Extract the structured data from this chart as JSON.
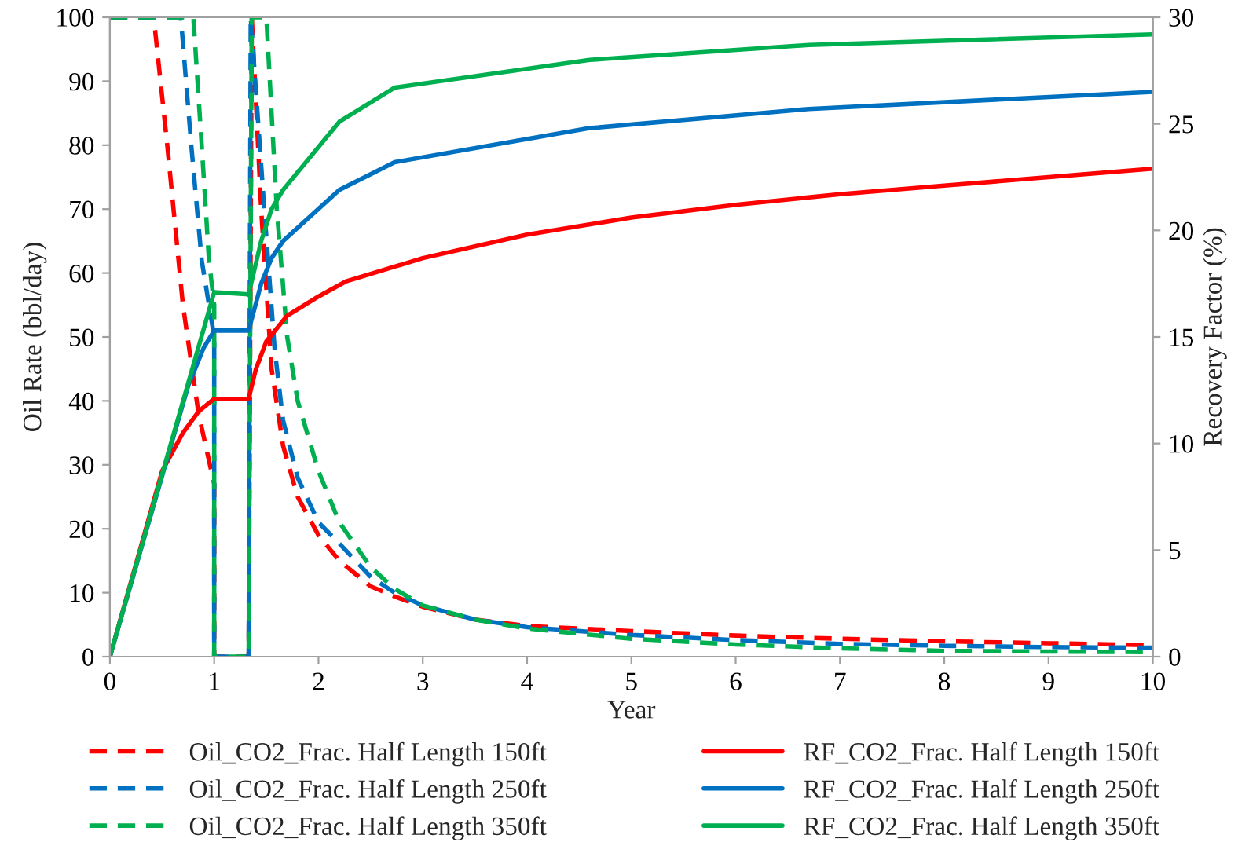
{
  "chart_data": {
    "type": "line",
    "xlabel": "Year",
    "ylabel": "Oil Rate (bbl/day)",
    "y2label": "Recovery Factor (%)",
    "xlim": [
      0,
      10
    ],
    "xticks": [
      0,
      1,
      2,
      3,
      4,
      5,
      6,
      7,
      8,
      9,
      10
    ],
    "ylim": [
      0,
      100
    ],
    "yticks": [
      0,
      10,
      20,
      30,
      40,
      50,
      60,
      70,
      80,
      90,
      100
    ],
    "y2lim": [
      0,
      30
    ],
    "y2ticks": [
      0,
      5,
      10,
      15,
      20,
      25,
      30
    ],
    "grid": false,
    "legend": "bottom",
    "marker": "none",
    "series": [
      {
        "name": "Oil_CO2_Frac. Half Length 150ft",
        "color": "#ff0000",
        "line_style": "dashed",
        "x": [
          0,
          0.42,
          0.55,
          0.7,
          0.85,
          1.0,
          1.0,
          1.33,
          1.36,
          1.45,
          1.55,
          1.66,
          1.8,
          2.0,
          2.2,
          2.5,
          2.73,
          3,
          3.5,
          4,
          5,
          6,
          7,
          8,
          9,
          10
        ],
        "values": [
          100,
          100,
          80,
          55,
          38,
          27,
          0,
          0,
          100,
          70,
          45,
          33,
          25,
          19,
          15,
          11,
          9.4,
          7.8,
          5.8,
          4.8,
          4,
          3.3,
          2.8,
          2.4,
          2.1,
          1.8
        ]
      },
      {
        "name": "Oil_CO2_Frac. Half Length 250ft",
        "color": "#0070c0",
        "line_style": "dashed",
        "x": [
          0,
          0.68,
          0.78,
          0.88,
          1.0,
          1.0,
          1.33,
          1.35,
          1.48,
          1.58,
          1.66,
          1.8,
          2.0,
          2.2,
          2.5,
          2.73,
          3,
          3.5,
          4,
          5,
          6,
          7,
          8,
          9,
          10
        ],
        "values": [
          100,
          100,
          80,
          62,
          50,
          0,
          0,
          100,
          70,
          48,
          37,
          28,
          21,
          17.7,
          12.5,
          10,
          8,
          5.8,
          4.6,
          3.4,
          2.6,
          2.0,
          1.7,
          1.5,
          1.4
        ]
      },
      {
        "name": "Oil_CO2_Frac. Half Length 350ft",
        "color": "#00b050",
        "line_style": "dashed",
        "x": [
          0,
          0.8,
          0.88,
          0.95,
          1.0,
          1.0,
          1.33,
          1.36,
          1.5,
          1.6,
          1.7,
          1.8,
          2.0,
          2.2,
          2.5,
          2.73,
          3,
          3.5,
          4,
          5,
          6,
          7,
          8,
          9,
          10
        ],
        "values": [
          100,
          100,
          80,
          62,
          55,
          0,
          0,
          100,
          100,
          70,
          50,
          40,
          29,
          21,
          14,
          10.6,
          8,
          5.8,
          4.4,
          2.8,
          1.9,
          1.3,
          0.9,
          0.8,
          0.7
        ]
      },
      {
        "name": "RF_CO2_Frac. Half Length 150ft",
        "color": "#ff0000",
        "line_style": "solid",
        "axis": "y2",
        "x": [
          0,
          0.5,
          0.7,
          0.85,
          1.0,
          1.33,
          1.4,
          1.5,
          1.7,
          2.0,
          2.26,
          3,
          4,
          5,
          6,
          7,
          8,
          9,
          10
        ],
        "values": [
          0,
          8.7,
          10.5,
          11.5,
          12.1,
          12.1,
          13.5,
          14.8,
          16,
          16.9,
          17.6,
          18.7,
          19.8,
          20.6,
          21.2,
          21.7,
          22.1,
          22.5,
          22.9
        ]
      },
      {
        "name": "RF_CO2_Frac. Half Length 250ft",
        "color": "#0070c0",
        "line_style": "solid",
        "axis": "y2",
        "x": [
          0,
          0.75,
          0.9,
          1.0,
          1.33,
          1.45,
          1.55,
          1.66,
          2.2,
          2.73,
          4.6,
          6.7,
          10
        ],
        "values": [
          0,
          12.7,
          14.5,
          15.3,
          15.3,
          17.5,
          18.7,
          19.5,
          21.9,
          23.2,
          24.8,
          25.7,
          26.5
        ]
      },
      {
        "name": "RF_CO2_Frac. Half Length 350ft",
        "color": "#00b050",
        "line_style": "solid",
        "axis": "y2",
        "x": [
          0,
          1.0,
          1.33,
          1.45,
          1.55,
          1.66,
          2.2,
          2.73,
          4.6,
          6.7,
          10
        ],
        "values": [
          0,
          17.1,
          17.0,
          19.5,
          21,
          21.9,
          25.1,
          26.7,
          28.0,
          28.7,
          29.2
        ]
      }
    ]
  }
}
